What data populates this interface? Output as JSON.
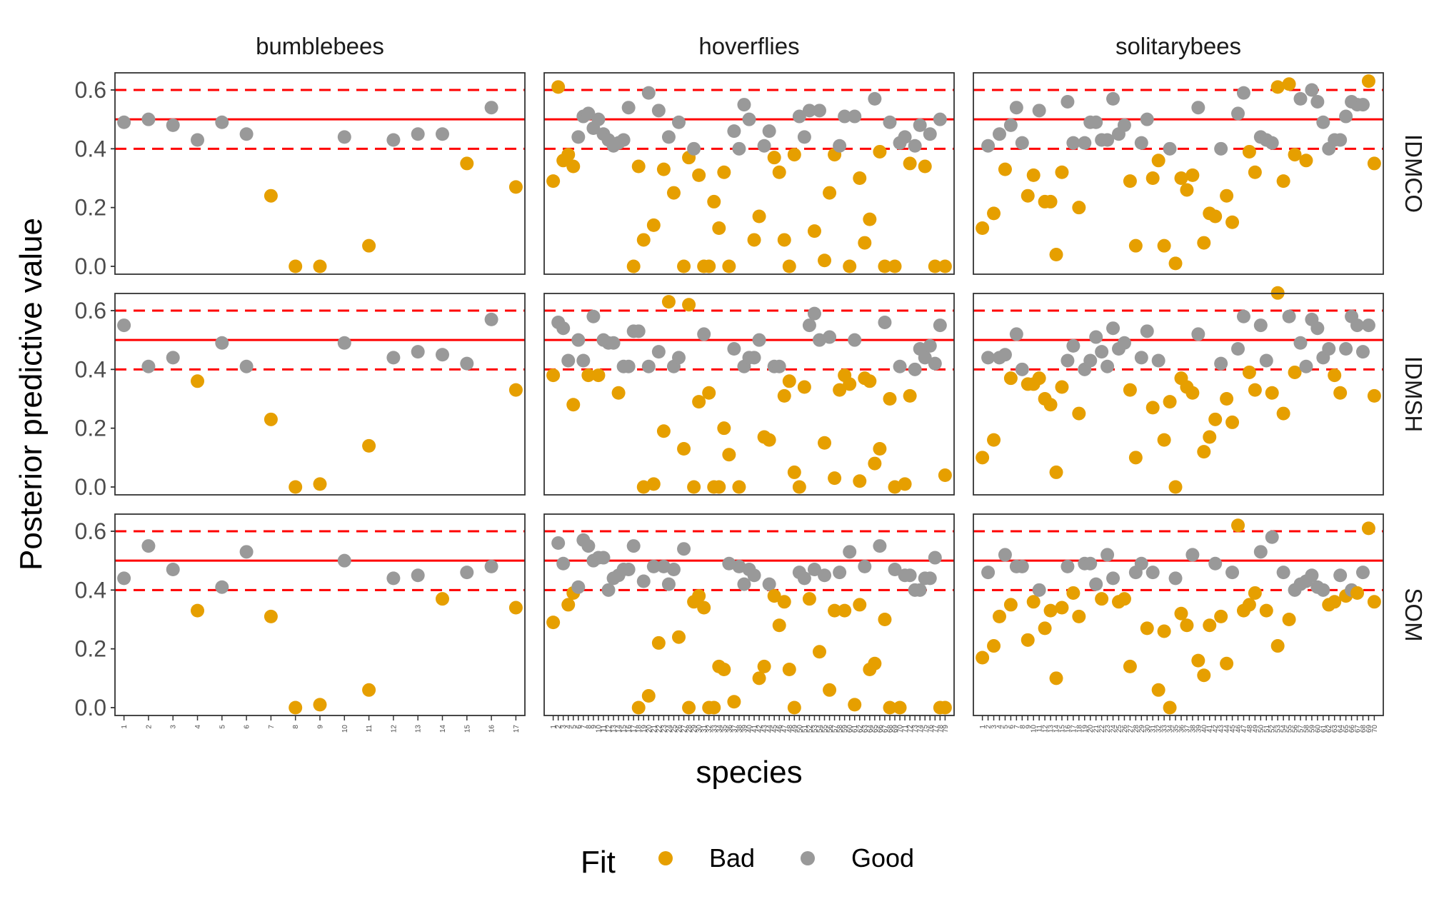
{
  "chart_data": {
    "type": "scatter",
    "facet_columns": [
      "bumblebees",
      "hoverflies",
      "solitarybees"
    ],
    "facet_rows": [
      "IDMCO",
      "IDMSH",
      "SOM"
    ],
    "xlabel": "species",
    "ylabel": "Posterior predictive value",
    "ylim": [
      -0.03,
      0.65
    ],
    "yticks": [
      "0.0",
      "0.2",
      "0.4",
      "0.6"
    ],
    "yticks_values": [
      0.0,
      0.2,
      0.4,
      0.6
    ],
    "reference_lines": {
      "solid": 0.5,
      "dashed": [
        0.4,
        0.6
      ]
    },
    "legend": {
      "title": "Fit",
      "position": "bottom",
      "entries": [
        {
          "label": "Bad",
          "color": "#E69F00"
        },
        {
          "label": "Good",
          "color": "#999999"
        }
      ]
    },
    "colors": {
      "Bad": "#E69F00",
      "Good": "#999999",
      "reference": "#FF0000"
    },
    "species_counts": {
      "bumblebees": 17,
      "hoverflies": 79,
      "solitarybees": 70
    },
    "panels": [
      {
        "group": "bumblebees",
        "model": "IDMCO",
        "x": [
          1,
          2,
          3,
          4,
          5,
          6,
          7,
          8,
          9,
          10,
          11,
          12,
          13,
          14,
          15,
          16,
          17
        ],
        "y": [
          0.49,
          0.5,
          0.48,
          0.43,
          0.49,
          0.45,
          0.24,
          0.0,
          0.0,
          0.44,
          0.07,
          0.43,
          0.45,
          0.45,
          0.35,
          0.54,
          0.27
        ]
      },
      {
        "group": "bumblebees",
        "model": "IDMSH",
        "x": [
          1,
          2,
          3,
          4,
          5,
          6,
          7,
          8,
          9,
          10,
          11,
          12,
          13,
          14,
          15,
          16,
          17
        ],
        "y": [
          0.55,
          0.41,
          0.44,
          0.36,
          0.49,
          0.41,
          0.23,
          0.0,
          0.01,
          0.49,
          0.14,
          0.44,
          0.46,
          0.45,
          0.42,
          0.57,
          0.33
        ]
      },
      {
        "group": "bumblebees",
        "model": "SOM",
        "x": [
          1,
          2,
          3,
          4,
          5,
          6,
          7,
          8,
          9,
          10,
          11,
          12,
          13,
          14,
          15,
          16,
          17
        ],
        "y": [
          0.44,
          0.55,
          0.47,
          0.33,
          0.41,
          0.53,
          0.31,
          0.0,
          0.01,
          0.5,
          0.06,
          0.44,
          0.45,
          0.37,
          0.46,
          0.48,
          0.34
        ]
      },
      {
        "group": "hoverflies",
        "model": "IDMCO",
        "x": [
          1,
          2,
          3,
          4,
          5,
          6,
          7,
          8,
          9,
          10,
          11,
          12,
          13,
          14,
          15,
          16,
          17,
          18,
          19,
          20,
          21,
          22,
          23,
          24,
          25,
          26,
          27,
          28,
          29,
          30,
          31,
          32,
          33,
          34,
          35,
          36,
          37,
          38,
          39,
          40,
          41,
          42,
          43,
          44,
          45,
          46,
          47,
          48,
          49,
          50,
          51,
          52,
          53,
          54,
          55,
          56,
          57,
          58,
          59,
          60,
          61,
          62,
          63,
          64,
          65,
          66,
          67,
          68,
          69,
          70,
          71,
          72,
          73,
          74,
          75,
          76,
          77,
          78,
          79
        ],
        "y": [
          0.29,
          0.61,
          0.36,
          0.38,
          0.34,
          0.44,
          0.51,
          0.52,
          0.47,
          0.5,
          0.45,
          0.43,
          0.41,
          0.42,
          0.43,
          0.54,
          0.0,
          0.34,
          0.09,
          0.59,
          0.14,
          0.53,
          0.33,
          0.44,
          0.25,
          0.49,
          0.0,
          0.37,
          0.4,
          0.31,
          0.0,
          0.0,
          0.22,
          0.13,
          0.32,
          0.0,
          0.46,
          0.4,
          0.55,
          0.5,
          0.09,
          0.17,
          0.41,
          0.46,
          0.37,
          0.32,
          0.09,
          0.0,
          0.38,
          0.51,
          0.44,
          0.53,
          0.12,
          0.53,
          0.02,
          0.25,
          0.38,
          0.41,
          0.51,
          0.0,
          0.51,
          0.3,
          0.08,
          0.16,
          0.57,
          0.39,
          0.0,
          0.49,
          0.0,
          0.42,
          0.44,
          0.35,
          0.41,
          0.48,
          0.34,
          0.45,
          0.0,
          0.5,
          0.0
        ]
      },
      {
        "group": "hoverflies",
        "model": "IDMSH",
        "x": [
          1,
          2,
          3,
          4,
          5,
          6,
          7,
          8,
          9,
          10,
          11,
          12,
          13,
          14,
          15,
          16,
          17,
          18,
          19,
          20,
          21,
          22,
          23,
          24,
          25,
          26,
          27,
          28,
          29,
          30,
          31,
          32,
          33,
          34,
          35,
          36,
          37,
          38,
          39,
          40,
          41,
          42,
          43,
          44,
          45,
          46,
          47,
          48,
          49,
          50,
          51,
          52,
          53,
          54,
          55,
          56,
          57,
          58,
          59,
          60,
          61,
          62,
          63,
          64,
          65,
          66,
          67,
          68,
          69,
          70,
          71,
          72,
          73,
          74,
          75,
          76,
          77,
          78,
          79
        ],
        "y": [
          0.38,
          0.56,
          0.54,
          0.43,
          0.28,
          0.5,
          0.43,
          0.38,
          0.58,
          0.38,
          0.5,
          0.49,
          0.49,
          0.32,
          0.41,
          0.41,
          0.53,
          0.53,
          0.0,
          0.41,
          0.01,
          0.46,
          0.19,
          0.63,
          0.41,
          0.44,
          0.13,
          0.62,
          0.0,
          0.29,
          0.52,
          0.32,
          0.0,
          0.0,
          0.2,
          0.11,
          0.47,
          0.0,
          0.41,
          0.44,
          0.44,
          0.5,
          0.17,
          0.16,
          0.41,
          0.41,
          0.31,
          0.36,
          0.05,
          0.0,
          0.34,
          0.55,
          0.59,
          0.5,
          0.15,
          0.51,
          0.03,
          0.33,
          0.38,
          0.35,
          0.5,
          0.02,
          0.37,
          0.36,
          0.08,
          0.13,
          0.56,
          0.3,
          0.0,
          0.41,
          0.01,
          0.31,
          0.4,
          0.47,
          0.44,
          0.48,
          0.42,
          0.55,
          0.04
        ]
      },
      {
        "group": "hoverflies",
        "model": "SOM",
        "x": [
          1,
          2,
          3,
          4,
          5,
          6,
          7,
          8,
          9,
          10,
          11,
          12,
          13,
          14,
          15,
          16,
          17,
          18,
          19,
          20,
          21,
          22,
          23,
          24,
          25,
          26,
          27,
          28,
          29,
          30,
          31,
          32,
          33,
          34,
          35,
          36,
          37,
          38,
          39,
          40,
          41,
          42,
          43,
          44,
          45,
          46,
          47,
          48,
          49,
          50,
          51,
          52,
          53,
          54,
          55,
          56,
          57,
          58,
          59,
          60,
          61,
          62,
          63,
          64,
          65,
          66,
          67,
          68,
          69,
          70,
          71,
          72,
          73,
          74,
          75,
          76,
          77,
          78,
          79
        ],
        "y": [
          0.29,
          0.56,
          0.49,
          0.35,
          0.39,
          0.41,
          0.57,
          0.55,
          0.5,
          0.51,
          0.51,
          0.4,
          0.44,
          0.45,
          0.47,
          0.47,
          0.55,
          0.0,
          0.43,
          0.04,
          0.48,
          0.22,
          0.48,
          0.42,
          0.47,
          0.24,
          0.54,
          0.0,
          0.36,
          0.38,
          0.34,
          0.0,
          0.0,
          0.14,
          0.13,
          0.49,
          0.02,
          0.48,
          0.42,
          0.47,
          0.45,
          0.1,
          0.14,
          0.42,
          0.38,
          0.28,
          0.36,
          0.13,
          0.0,
          0.46,
          0.44,
          0.37,
          0.47,
          0.19,
          0.45,
          0.06,
          0.33,
          0.46,
          0.33,
          0.53,
          0.01,
          0.35,
          0.48,
          0.13,
          0.15,
          0.55,
          0.3,
          0.0,
          0.47,
          0.0,
          0.45,
          0.45,
          0.4,
          0.4,
          0.44,
          0.44,
          0.51,
          0.0,
          0.0
        ]
      },
      {
        "group": "solitarybees",
        "model": "IDMCO",
        "x": [
          1,
          2,
          3,
          4,
          5,
          6,
          7,
          8,
          9,
          10,
          11,
          12,
          13,
          14,
          15,
          16,
          17,
          18,
          19,
          20,
          21,
          22,
          23,
          24,
          25,
          26,
          27,
          28,
          29,
          30,
          31,
          32,
          33,
          34,
          35,
          36,
          37,
          38,
          39,
          40,
          41,
          42,
          43,
          44,
          45,
          46,
          47,
          48,
          49,
          50,
          51,
          52,
          53,
          54,
          55,
          56,
          57,
          58,
          59,
          60,
          61,
          62,
          63,
          64,
          65,
          66,
          67,
          68,
          69,
          70
        ],
        "y": [
          0.13,
          0.41,
          0.18,
          0.45,
          0.33,
          0.48,
          0.54,
          0.42,
          0.24,
          0.31,
          0.53,
          0.22,
          0.22,
          0.04,
          0.32,
          0.56,
          0.42,
          0.2,
          0.42,
          0.49,
          0.49,
          0.43,
          0.43,
          0.57,
          0.45,
          0.48,
          0.29,
          0.07,
          0.42,
          0.5,
          0.3,
          0.36,
          0.07,
          0.4,
          0.01,
          0.3,
          0.26,
          0.31,
          0.54,
          0.08,
          0.18,
          0.17,
          0.4,
          0.24,
          0.15,
          0.52,
          0.59,
          0.39,
          0.32,
          0.44,
          0.43,
          0.42,
          0.61,
          0.29,
          0.62,
          0.38,
          0.57,
          0.36,
          0.6,
          0.56,
          0.49,
          0.4,
          0.43,
          0.43,
          0.51,
          0.56,
          0.55,
          0.55,
          0.63,
          0.35
        ]
      },
      {
        "group": "solitarybees",
        "model": "IDMSH",
        "x": [
          1,
          2,
          3,
          4,
          5,
          6,
          7,
          8,
          9,
          10,
          11,
          12,
          13,
          14,
          15,
          16,
          17,
          18,
          19,
          20,
          21,
          22,
          23,
          24,
          25,
          26,
          27,
          28,
          29,
          30,
          31,
          32,
          33,
          34,
          35,
          36,
          37,
          38,
          39,
          40,
          41,
          42,
          43,
          44,
          45,
          46,
          47,
          48,
          49,
          50,
          51,
          52,
          53,
          54,
          55,
          56,
          57,
          58,
          59,
          60,
          61,
          62,
          63,
          64,
          65,
          66,
          67,
          68,
          69,
          70
        ],
        "y": [
          0.1,
          0.44,
          0.16,
          0.44,
          0.45,
          0.37,
          0.52,
          0.4,
          0.35,
          0.35,
          0.37,
          0.3,
          0.28,
          0.05,
          0.34,
          0.43,
          0.48,
          0.25,
          0.4,
          0.43,
          0.51,
          0.46,
          0.41,
          0.54,
          0.47,
          0.49,
          0.33,
          0.1,
          0.44,
          0.53,
          0.27,
          0.43,
          0.16,
          0.29,
          0.0,
          0.37,
          0.34,
          0.32,
          0.52,
          0.12,
          0.17,
          0.23,
          0.42,
          0.3,
          0.22,
          0.47,
          0.58,
          0.39,
          0.33,
          0.55,
          0.43,
          0.32,
          0.66,
          0.25,
          0.58,
          0.39,
          0.49,
          0.41,
          0.57,
          0.54,
          0.44,
          0.47,
          0.38,
          0.32,
          0.47,
          0.58,
          0.55,
          0.46,
          0.55,
          0.31
        ]
      },
      {
        "group": "solitarybees",
        "model": "SOM",
        "x": [
          1,
          2,
          3,
          4,
          5,
          6,
          7,
          8,
          9,
          10,
          11,
          12,
          13,
          14,
          15,
          16,
          17,
          18,
          19,
          20,
          21,
          22,
          23,
          24,
          25,
          26,
          27,
          28,
          29,
          30,
          31,
          32,
          33,
          34,
          35,
          36,
          37,
          38,
          39,
          40,
          41,
          42,
          43,
          44,
          45,
          46,
          47,
          48,
          49,
          50,
          51,
          52,
          53,
          54,
          55,
          56,
          57,
          58,
          59,
          60,
          61,
          62,
          63,
          64,
          65,
          66,
          67,
          68,
          69,
          70
        ],
        "y": [
          0.17,
          0.46,
          0.21,
          0.31,
          0.52,
          0.35,
          0.48,
          0.48,
          0.23,
          0.36,
          0.4,
          0.27,
          0.33,
          0.1,
          0.34,
          0.48,
          0.39,
          0.31,
          0.49,
          0.49,
          0.42,
          0.37,
          0.52,
          0.44,
          0.36,
          0.37,
          0.14,
          0.46,
          0.49,
          0.27,
          0.46,
          0.06,
          0.26,
          0.0,
          0.44,
          0.32,
          0.28,
          0.52,
          0.16,
          0.11,
          0.28,
          0.49,
          0.31,
          0.15,
          0.46,
          0.62,
          0.33,
          0.35,
          0.39,
          0.53,
          0.33,
          0.58,
          0.21,
          0.46,
          0.3,
          0.4,
          0.42,
          0.43,
          0.45,
          0.41,
          0.4,
          0.35,
          0.36,
          0.45,
          0.38,
          0.4,
          0.39,
          0.46,
          0.61,
          0.36
        ]
      }
    ]
  }
}
